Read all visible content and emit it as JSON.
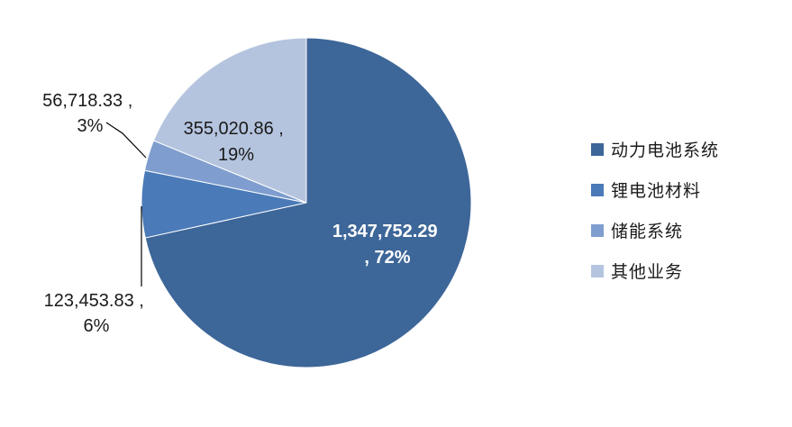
{
  "chart_data": {
    "type": "pie",
    "categories": [
      "动力电池系统",
      "锂电池材料",
      "储能系统",
      "其他业务"
    ],
    "values": [
      1347752.29,
      123453.83,
      56718.33,
      355020.86
    ],
    "percentages": [
      "72%",
      "6%",
      "3%",
      "19%"
    ],
    "value_labels": [
      "1,347,752.29",
      "123,453.83",
      "56,718.33",
      "355,020.86"
    ],
    "colors": [
      "#3D6699",
      "#4A7AB8",
      "#7F9ECF",
      "#B5C4DE"
    ],
    "legend_position": "right",
    "start_angle": "12 o'clock, clockwise"
  }
}
